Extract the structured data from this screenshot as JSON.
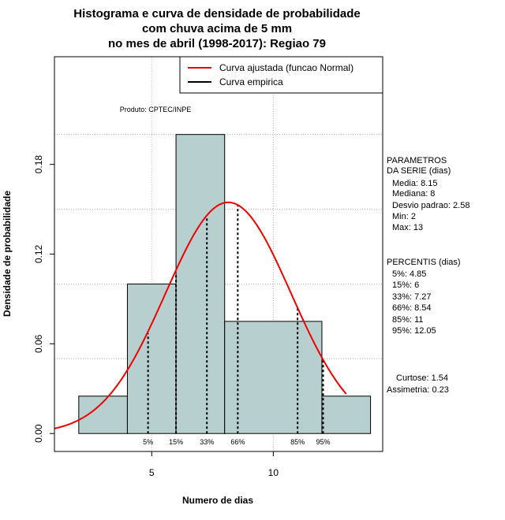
{
  "chart_data": {
    "type": "histogram",
    "title_lines": [
      "Histograma e curva de densidade de probabilidade",
      "com chuva acima de 5 mm",
      "no mes de abril (1998-2017): Regiao 79"
    ],
    "xlabel": "Numero de dias",
    "ylabel": "Densidade de probabilidade",
    "xlim": [
      1,
      14.5
    ],
    "ylim": [
      -0.012,
      0.252
    ],
    "x_ticks": [
      5,
      10
    ],
    "y_ticks": [
      0.0,
      0.06,
      0.12,
      0.18
    ],
    "y_tick_labels": [
      "0.00",
      "0.06",
      "0.12",
      "0.18"
    ],
    "grid_x": [
      5,
      10
    ],
    "grid_y": [
      0.05,
      0.1,
      0.15,
      0.2
    ],
    "bars": [
      {
        "x0": 2,
        "x1": 4,
        "density": 0.025
      },
      {
        "x0": 4,
        "x1": 6,
        "density": 0.1
      },
      {
        "x0": 6,
        "x1": 8,
        "density": 0.2
      },
      {
        "x0": 8,
        "x1": 12,
        "density": 0.075
      },
      {
        "x0": 12,
        "x1": 14,
        "density": 0.025
      }
    ],
    "normal_fit": {
      "mean": 8.15,
      "sd": 2.58,
      "x_from": 1,
      "x_to": 13
    },
    "percentile_lines": [
      {
        "label": "5%",
        "x": 4.85
      },
      {
        "label": "15%",
        "x": 6
      },
      {
        "label": "33%",
        "x": 7.27
      },
      {
        "label": "66%",
        "x": 8.54
      },
      {
        "label": "85%",
        "x": 11
      },
      {
        "label": "95%",
        "x": 12.05
      }
    ],
    "legend": [
      {
        "label": "Curva ajustada (funcao Normal)",
        "color": "#ee0000"
      },
      {
        "label": "Curva empirica",
        "color": "#000000"
      }
    ],
    "annotation": "Produto: CPTEC/INPE",
    "colors": {
      "bar_fill": "#b7cfcf",
      "curve": "#ee0000",
      "grid": "#b5b5b5"
    }
  },
  "stats_panel": {
    "params_title": [
      "PARAMETROS",
      "DA SERIE (dias)"
    ],
    "params": [
      "Media: 8.15",
      "Mediana: 8",
      "Desvio padrao: 2.58",
      "Min: 2",
      "Max: 13"
    ],
    "percentis_title": "PERCENTIS (dias)",
    "percentis": [
      "5%: 4.85",
      "15%: 6",
      "33%: 7.27",
      "66%: 8.54",
      "85%: 11",
      "95%: 12.05"
    ],
    "curtose": "Curtose: 1.54",
    "assimetria": "Assimetria: 0.23"
  }
}
